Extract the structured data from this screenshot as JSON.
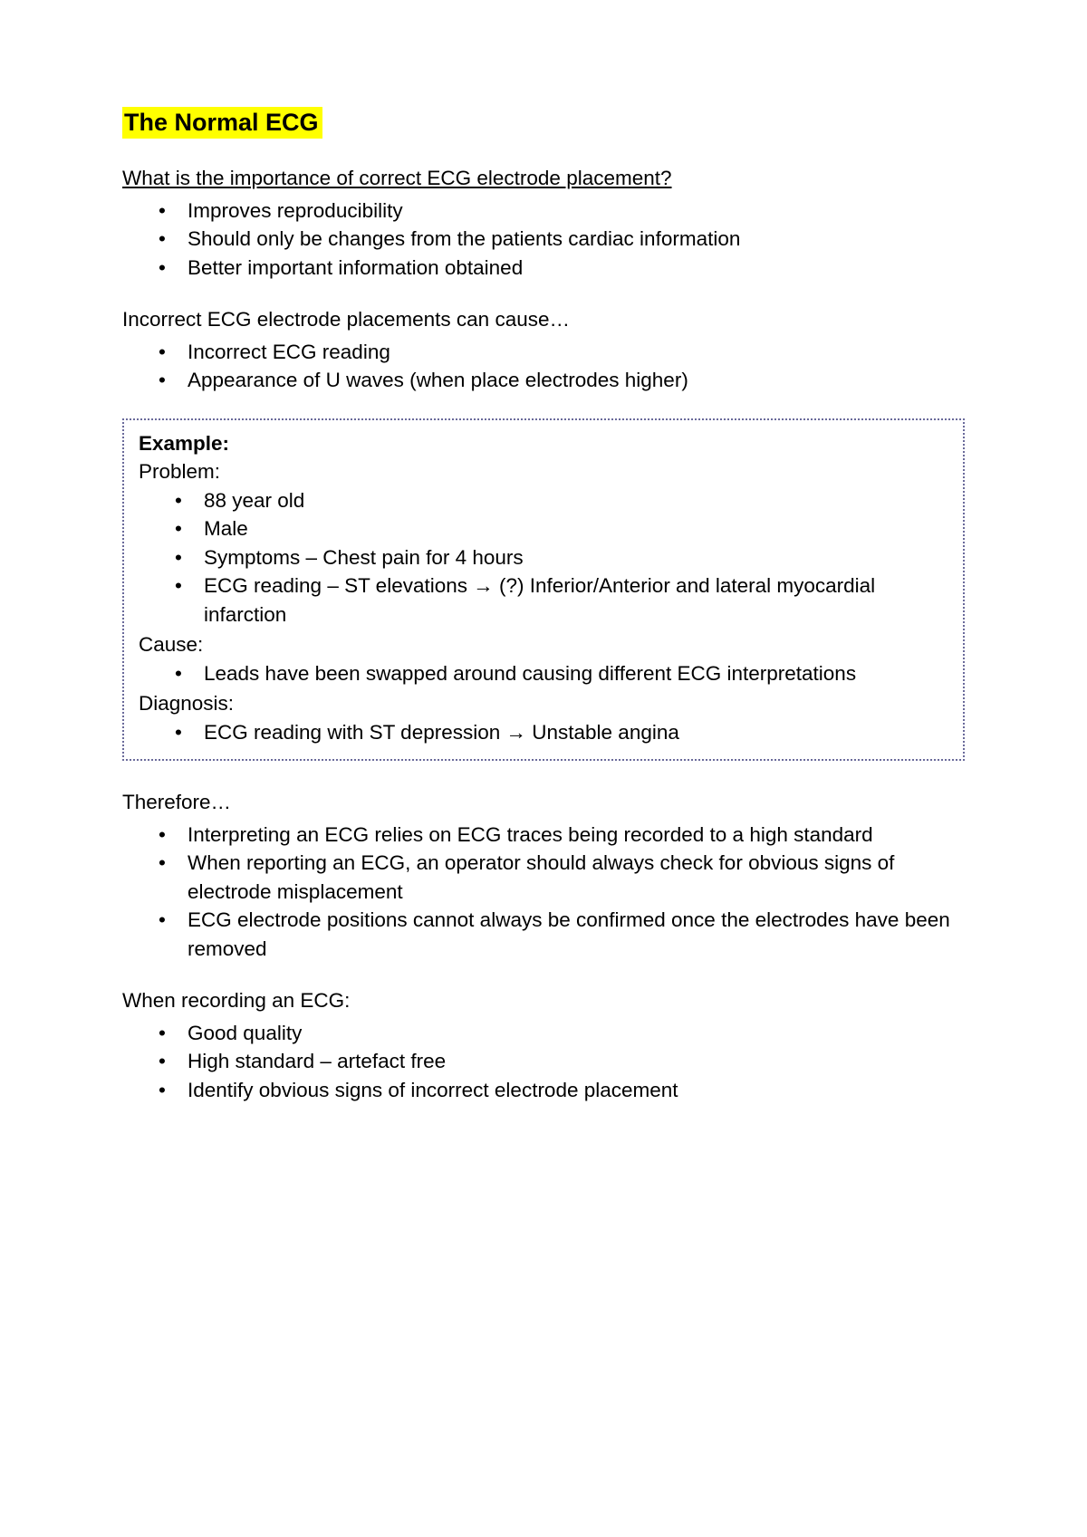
{
  "colors": {
    "highlight_bg": "#ffff00",
    "text": "#000000",
    "page_bg": "#ffffff",
    "dotted_border": "#6a6a9a"
  },
  "typography": {
    "title_fontsize": 27,
    "body_fontsize": 22.5,
    "line_height": 1.4,
    "font_family": "Arial"
  },
  "title": "The Normal ECG",
  "section1": {
    "heading": "What is the importance of correct ECG electrode placement?",
    "items": [
      "Improves reproducibility",
      "Should only be changes from the patients cardiac information",
      "Better important information obtained"
    ]
  },
  "section2": {
    "heading": "Incorrect ECG electrode placements can cause…",
    "items": [
      "Incorrect ECG reading",
      "Appearance of U waves (when place electrodes higher)"
    ]
  },
  "example": {
    "label": "Example:",
    "problem_label": "Problem:",
    "problem_items": [
      "88 year old",
      "Male",
      "Symptoms – Chest pain for 4 hours",
      "ECG reading – ST elevations → (?) Inferior/Anterior and lateral myocardial infarction"
    ],
    "cause_label": "Cause:",
    "cause_items": [
      "Leads have been swapped around causing different ECG interpretations"
    ],
    "diagnosis_label": "Diagnosis:",
    "diagnosis_items": [
      "ECG reading with ST depression → Unstable angina"
    ]
  },
  "section3": {
    "heading": "Therefore…",
    "items": [
      "Interpreting an ECG relies on ECG traces being recorded to a high standard",
      "When reporting an ECG, an operator should always check for obvious signs of electrode misplacement",
      "ECG electrode positions cannot always be confirmed once the electrodes have been removed"
    ]
  },
  "section4": {
    "heading": "When recording an ECG:",
    "items": [
      "Good quality",
      "High standard – artefact free",
      "Identify obvious signs of incorrect electrode placement"
    ]
  }
}
